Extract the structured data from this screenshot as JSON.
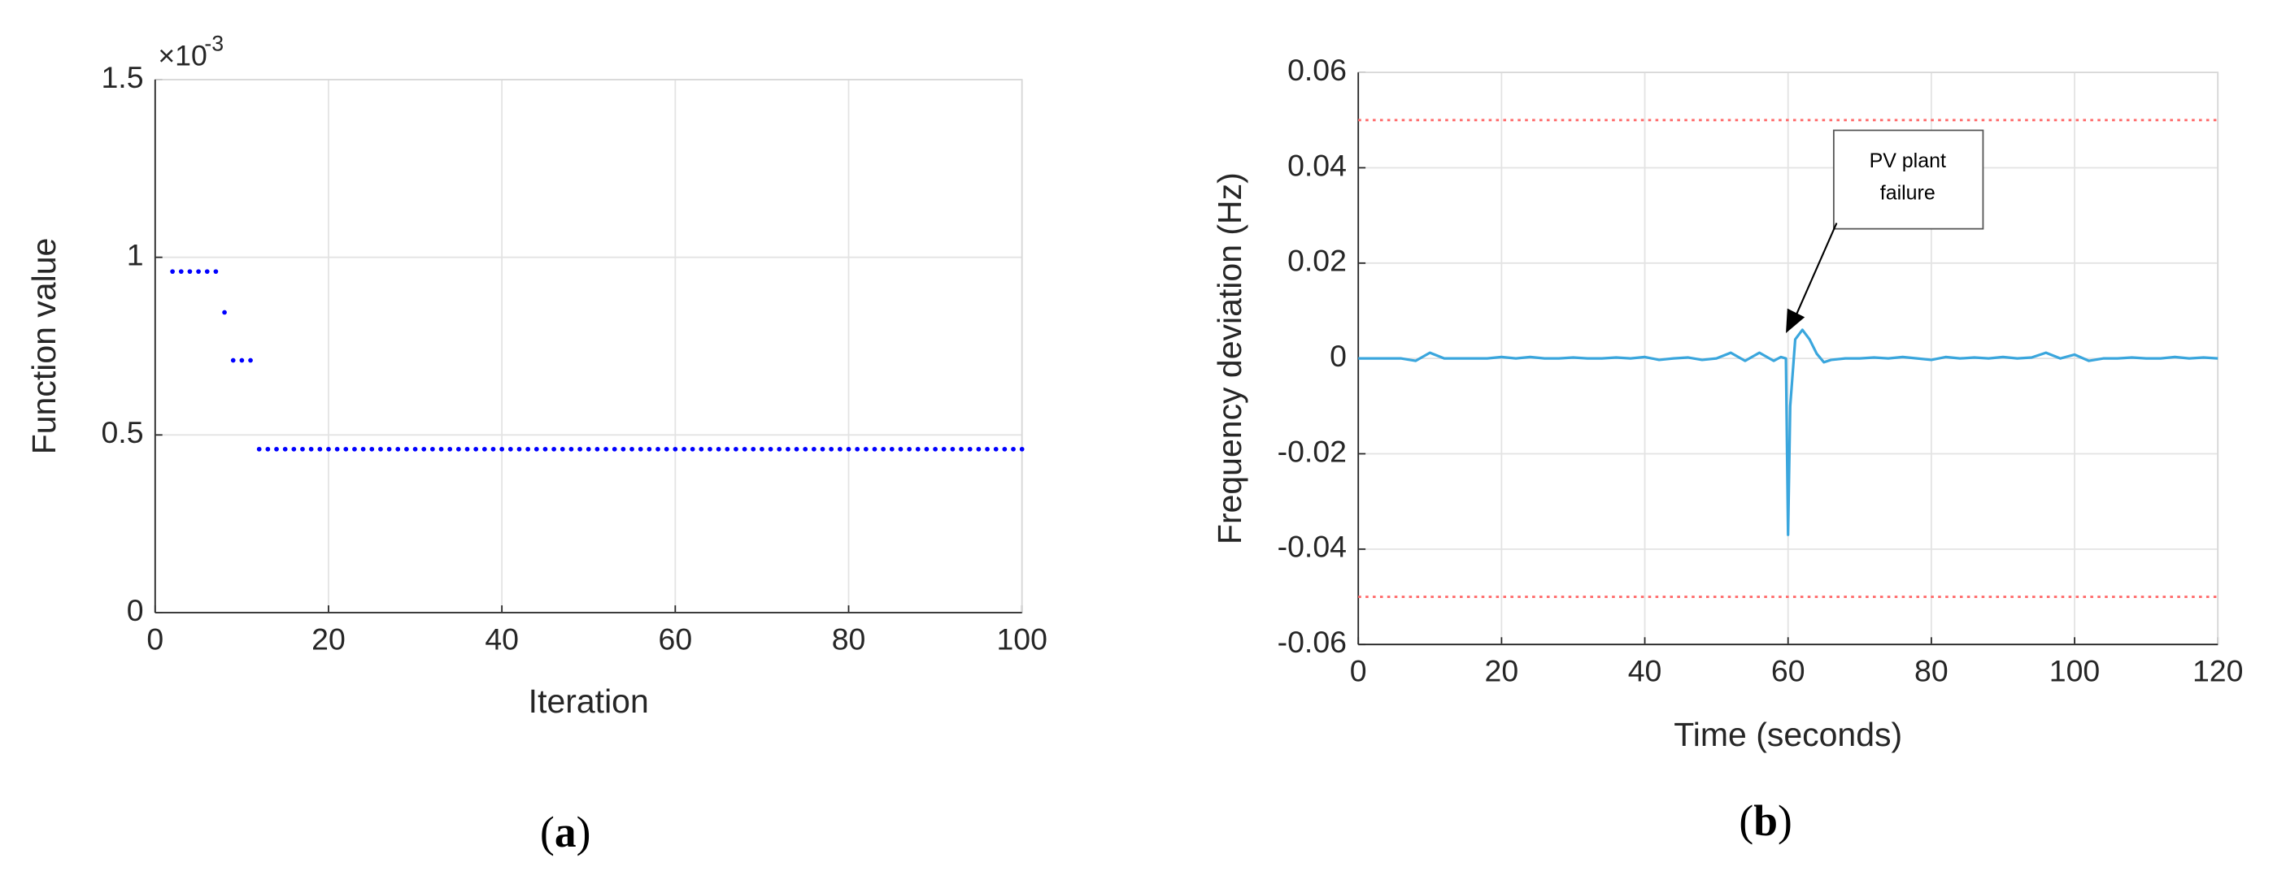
{
  "chart_data": [
    {
      "type": "scatter",
      "caption": {
        "open": "(",
        "letter": "a",
        "close": ")"
      },
      "xlabel": "Iteration",
      "ylabel": "Function value",
      "y_multiplier": {
        "base": "×10",
        "exponent": "-3"
      },
      "color": "#0000ff",
      "grid": true,
      "xlim": [
        0,
        100
      ],
      "xticks": [
        0,
        20,
        40,
        60,
        80,
        100
      ],
      "ylim": [
        0,
        1.5
      ],
      "yticks": [
        0,
        0.5,
        1,
        1.5
      ],
      "x": [
        2,
        3,
        4,
        5,
        6,
        7,
        8,
        9,
        10,
        11,
        12,
        13,
        14,
        15,
        16,
        17,
        18,
        19,
        20,
        21,
        22,
        23,
        24,
        25,
        26,
        27,
        28,
        29,
        30,
        31,
        32,
        33,
        34,
        35,
        36,
        37,
        38,
        39,
        40,
        41,
        42,
        43,
        44,
        45,
        46,
        47,
        48,
        49,
        50,
        51,
        52,
        53,
        54,
        55,
        56,
        57,
        58,
        59,
        60,
        61,
        62,
        63,
        64,
        65,
        66,
        67,
        68,
        69,
        70,
        71,
        72,
        73,
        74,
        75,
        76,
        77,
        78,
        79,
        80,
        81,
        82,
        83,
        84,
        85,
        86,
        87,
        88,
        89,
        90,
        91,
        92,
        93,
        94,
        95,
        96,
        97,
        98,
        99,
        100
      ],
      "values": [
        0.96,
        0.96,
        0.96,
        0.96,
        0.96,
        0.96,
        0.845,
        0.71,
        0.71,
        0.71,
        0.46,
        0.46,
        0.46,
        0.46,
        0.46,
        0.46,
        0.46,
        0.46,
        0.46,
        0.46,
        0.46,
        0.46,
        0.46,
        0.46,
        0.46,
        0.46,
        0.46,
        0.46,
        0.46,
        0.46,
        0.46,
        0.46,
        0.46,
        0.46,
        0.46,
        0.46,
        0.46,
        0.46,
        0.46,
        0.46,
        0.46,
        0.46,
        0.46,
        0.46,
        0.46,
        0.46,
        0.46,
        0.46,
        0.46,
        0.46,
        0.46,
        0.46,
        0.46,
        0.46,
        0.46,
        0.46,
        0.46,
        0.46,
        0.46,
        0.46,
        0.46,
        0.46,
        0.46,
        0.46,
        0.46,
        0.46,
        0.46,
        0.46,
        0.46,
        0.46,
        0.46,
        0.46,
        0.46,
        0.46,
        0.46,
        0.46,
        0.46,
        0.46,
        0.46,
        0.46,
        0.46,
        0.46,
        0.46,
        0.46,
        0.46,
        0.46,
        0.46,
        0.46,
        0.46,
        0.46,
        0.46,
        0.46,
        0.46,
        0.46,
        0.46,
        0.46,
        0.46,
        0.46,
        0.46
      ]
    },
    {
      "type": "line",
      "caption": {
        "open": "(",
        "letter": "b",
        "close": ")"
      },
      "xlabel": "Time (seconds)",
      "ylabel": "Frequency deviation (Hz)",
      "color": "#3aa6dd",
      "grid": true,
      "xlim": [
        0,
        120
      ],
      "xticks": [
        0,
        20,
        40,
        60,
        80,
        100,
        120
      ],
      "ylim": [
        -0.06,
        0.06
      ],
      "yticks": [
        -0.06,
        -0.04,
        -0.02,
        0,
        0.02,
        0.04,
        0.06
      ],
      "hlines": [
        {
          "value": 0.05,
          "color": "#ff6b6b"
        },
        {
          "value": -0.05,
          "color": "#ff6b6b"
        }
      ],
      "annotation": [
        "PV plant",
        "failure"
      ],
      "x": [
        0,
        2,
        4,
        6,
        8,
        10,
        12,
        14,
        16,
        18,
        20,
        22,
        24,
        26,
        28,
        30,
        32,
        34,
        36,
        38,
        40,
        42,
        44,
        46,
        48,
        50,
        52,
        54,
        56,
        58,
        59,
        59.7,
        60,
        60.3,
        61,
        62,
        63,
        64,
        65,
        66,
        68,
        70,
        72,
        74,
        76,
        78,
        80,
        82,
        84,
        86,
        88,
        90,
        92,
        94,
        96,
        98,
        100,
        102,
        104,
        106,
        108,
        110,
        112,
        114,
        116,
        118,
        120
      ],
      "values": [
        0,
        0,
        0,
        0,
        -0.0005,
        0.0012,
        0,
        0,
        0,
        0,
        0.0003,
        0,
        0.0003,
        0,
        0,
        0.0002,
        0,
        0,
        0.0002,
        0,
        0.0003,
        -0.0003,
        0,
        0.0002,
        -0.0003,
        0,
        0.0012,
        -0.0005,
        0.0012,
        -0.0005,
        0.0003,
        0,
        -0.037,
        -0.01,
        0.004,
        0.006,
        0.004,
        0.001,
        -0.0008,
        -0.0003,
        0,
        0,
        0.0002,
        0,
        0.0003,
        0,
        -0.0003,
        0.0003,
        0,
        0.0002,
        0,
        0.0003,
        0,
        0.0002,
        0.0012,
        0,
        0.0008,
        -0.0005,
        0,
        0,
        0.0002,
        0,
        0,
        0.0003,
        0,
        0.0002,
        0
      ]
    }
  ]
}
